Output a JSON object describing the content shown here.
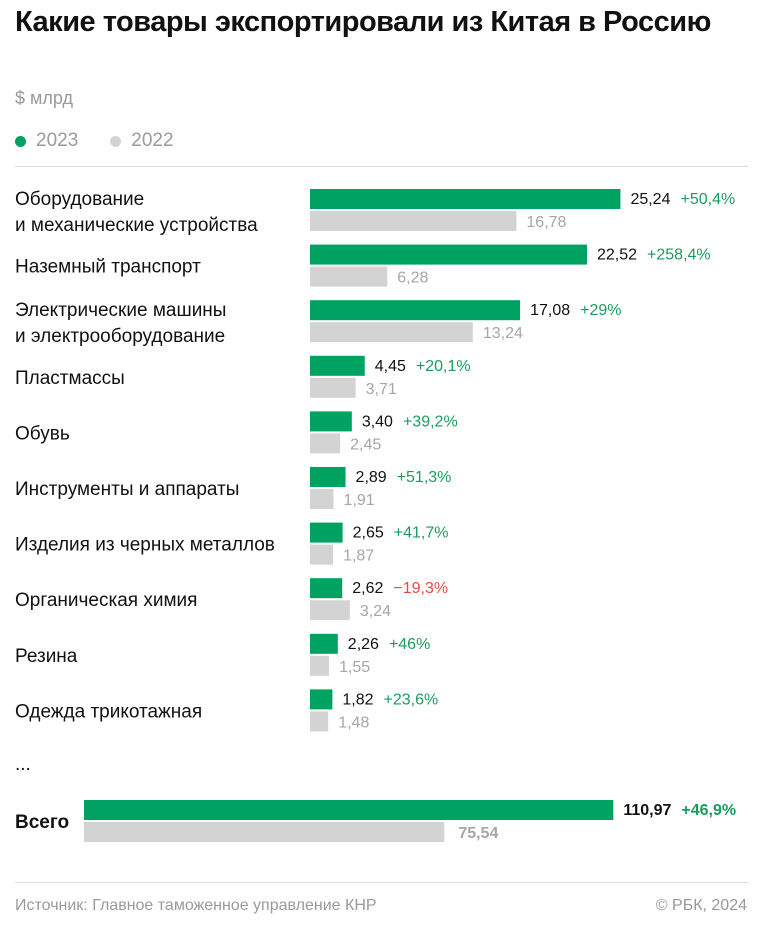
{
  "header": {
    "title": "Какие товары экспортировали из Китая в Россию",
    "unit": "$ млрд"
  },
  "legend": [
    {
      "label": "2023",
      "color": "#00a261"
    },
    {
      "label": "2022",
      "color": "#d3d3d3"
    }
  ],
  "chart_data": {
    "type": "bar",
    "orientation": "horizontal",
    "ylabel": "$ млрд",
    "categories": [
      "Оборудование\nи механические устройства",
      "Наземный транспорт",
      "Электрические машины\nи электрооборудование",
      "Пластмассы",
      "Обувь",
      "Инструменты и аппараты",
      "Изделия из черных металлов",
      "Органическая химия",
      "Резина",
      "Одежда трикотажная"
    ],
    "series": [
      {
        "name": "2023",
        "color": "#00a261",
        "values": [
          25.24,
          22.52,
          17.08,
          4.45,
          3.4,
          2.89,
          2.65,
          2.62,
          2.26,
          1.82
        ],
        "labels": [
          "25,24",
          "22,52",
          "17,08",
          "4,45",
          "3,40",
          "2,89",
          "2,65",
          "2,62",
          "2,26",
          "1,82"
        ]
      },
      {
        "name": "2022",
        "color": "#d3d3d3",
        "values": [
          16.78,
          6.28,
          13.24,
          3.71,
          2.45,
          1.91,
          1.87,
          3.24,
          1.55,
          1.48
        ],
        "labels": [
          "16,78",
          "6,28",
          "13,24",
          "3,71",
          "2,45",
          "1,91",
          "1,87",
          "3,24",
          "1,55",
          "1,48"
        ]
      }
    ],
    "changes": [
      "+50,4%",
      "+258,4%",
      "+29%",
      "+20,1%",
      "+39,2%",
      "+51,3%",
      "+41,7%",
      "−19,3%",
      "+46%",
      "+23,6%"
    ],
    "ellipsis": "...",
    "total": {
      "label": "Всего",
      "v2023": 110.97,
      "v2023_label": "110,97",
      "v2022": 75.54,
      "v2022_label": "75,54",
      "change": "+46,9%"
    },
    "colors": {
      "positive": "#1a9d5f",
      "negative": "#e84b3c"
    },
    "grid": false
  },
  "footer": {
    "source": "Источник: Главное таможенное управление КНР",
    "copyright": "© РБК, 2024"
  }
}
